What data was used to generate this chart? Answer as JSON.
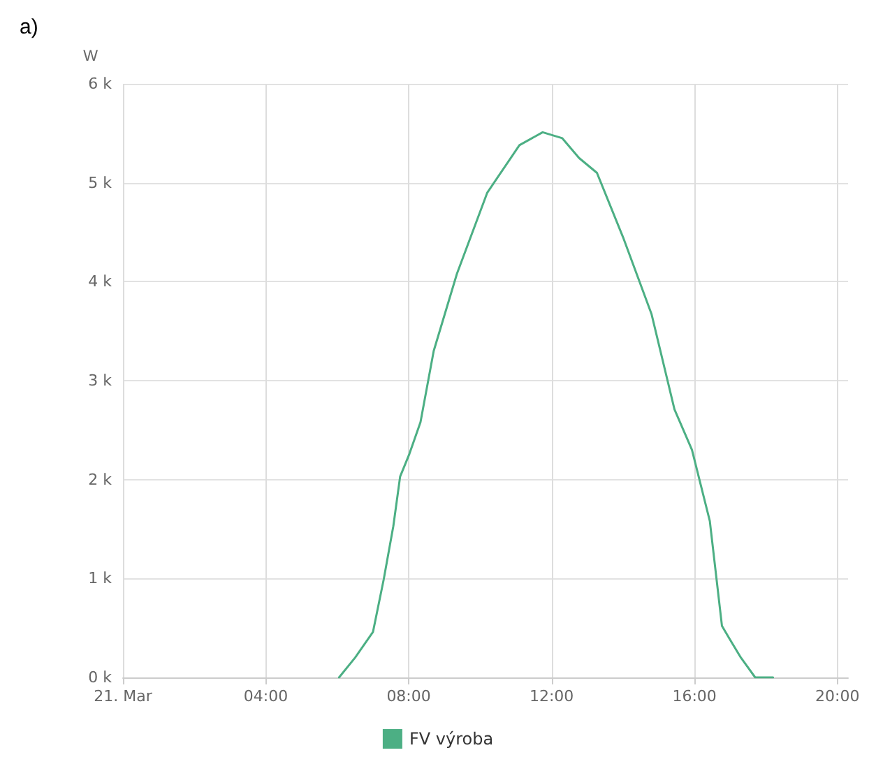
{
  "chart_data": {
    "type": "line",
    "ylabel": "W",
    "annotations": [
      "a)"
    ],
    "xlim": [
      0,
      20.3
    ],
    "xticks": [
      {
        "value": 0,
        "label": "21. Mar"
      },
      {
        "value": 4,
        "label": "04:00"
      },
      {
        "value": 8,
        "label": "08:00"
      },
      {
        "value": 12,
        "label": "12:00"
      },
      {
        "value": 16,
        "label": "16:00"
      },
      {
        "value": 20,
        "label": "20:00"
      }
    ],
    "ylim": [
      0,
      6000
    ],
    "yticks": [
      {
        "value": 0,
        "label": "0 k"
      },
      {
        "value": 1000,
        "label": "1 k"
      },
      {
        "value": 2000,
        "label": "2 k"
      },
      {
        "value": 3000,
        "label": "3 k"
      },
      {
        "value": 4000,
        "label": "4 k"
      },
      {
        "value": 5000,
        "label": "5 k"
      },
      {
        "value": 6000,
        "label": "6 k"
      }
    ],
    "series": [
      {
        "name": "FV výroba",
        "color": "#4caf84",
        "x": [
          6.05,
          6.5,
          7.0,
          7.3,
          7.57,
          7.76,
          8.02,
          8.33,
          8.7,
          9.35,
          10.2,
          11.1,
          11.75,
          12.3,
          12.77,
          13.27,
          14.0,
          14.8,
          15.44,
          15.93,
          16.43,
          16.77,
          17.0,
          17.3,
          17.7,
          18.2
        ],
        "values": [
          0,
          200,
          460,
          990,
          1530,
          2030,
          2260,
          2580,
          3300,
          4080,
          4900,
          5380,
          5510,
          5450,
          5250,
          5100,
          4450,
          3670,
          2710,
          2300,
          1580,
          520,
          380,
          200,
          0,
          0
        ]
      }
    ],
    "grid": true,
    "legend": "bottom",
    "marker": "none",
    "line_style": "solid"
  }
}
